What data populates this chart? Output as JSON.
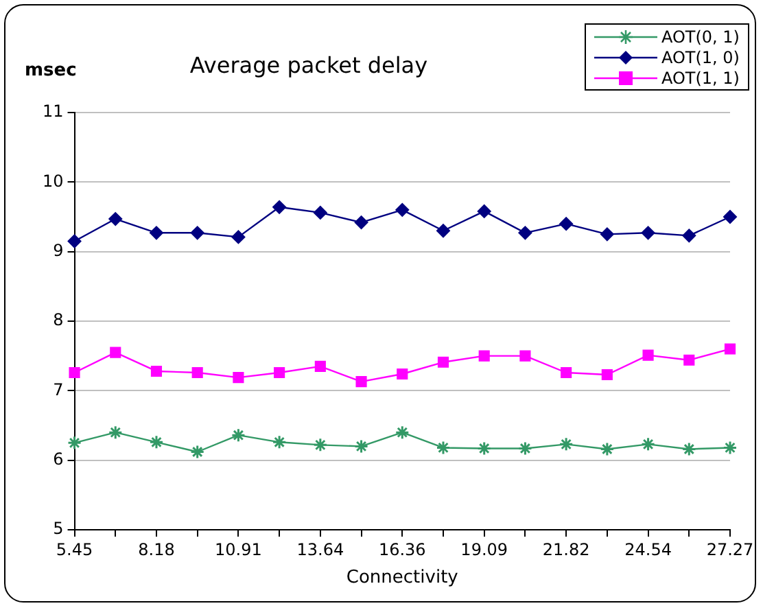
{
  "chart_data": {
    "type": "line",
    "title": "Average packet delay",
    "ylabel": "msec",
    "xlabel": "Connectivity",
    "categories": [
      "5.45",
      null,
      "8.18",
      null,
      "10.91",
      null,
      "13.64",
      null,
      "16.36",
      null,
      "19.09",
      null,
      "21.82",
      null,
      "24.54",
      null,
      "27.27"
    ],
    "series": [
      {
        "name": "AOT(0, 1)",
        "color": "#339966",
        "marker": "cross",
        "values": [
          6.25,
          6.4,
          6.26,
          6.12,
          6.36,
          6.26,
          6.22,
          6.2,
          6.4,
          6.18,
          6.17,
          6.17,
          6.23,
          6.16,
          6.23,
          6.16,
          6.18
        ]
      },
      {
        "name": "AOT(1, 0)",
        "color": "#000080",
        "marker": "diamond",
        "values": [
          9.15,
          9.47,
          9.27,
          9.27,
          9.21,
          9.64,
          9.56,
          9.42,
          9.6,
          9.3,
          9.58,
          9.27,
          9.4,
          9.25,
          9.27,
          9.23,
          9.5
        ]
      },
      {
        "name": "AOT(1, 1)",
        "color": "#ff00ff",
        "marker": "square",
        "values": [
          7.26,
          7.55,
          7.28,
          7.26,
          7.19,
          7.26,
          7.35,
          7.13,
          7.24,
          7.41,
          7.5,
          7.5,
          7.26,
          7.23,
          7.51,
          7.44,
          7.6
        ]
      }
    ],
    "ylim": [
      5,
      11
    ],
    "yticks": [
      5,
      6,
      7,
      8,
      9,
      10,
      11
    ],
    "grid": "y",
    "legend": "top right"
  }
}
